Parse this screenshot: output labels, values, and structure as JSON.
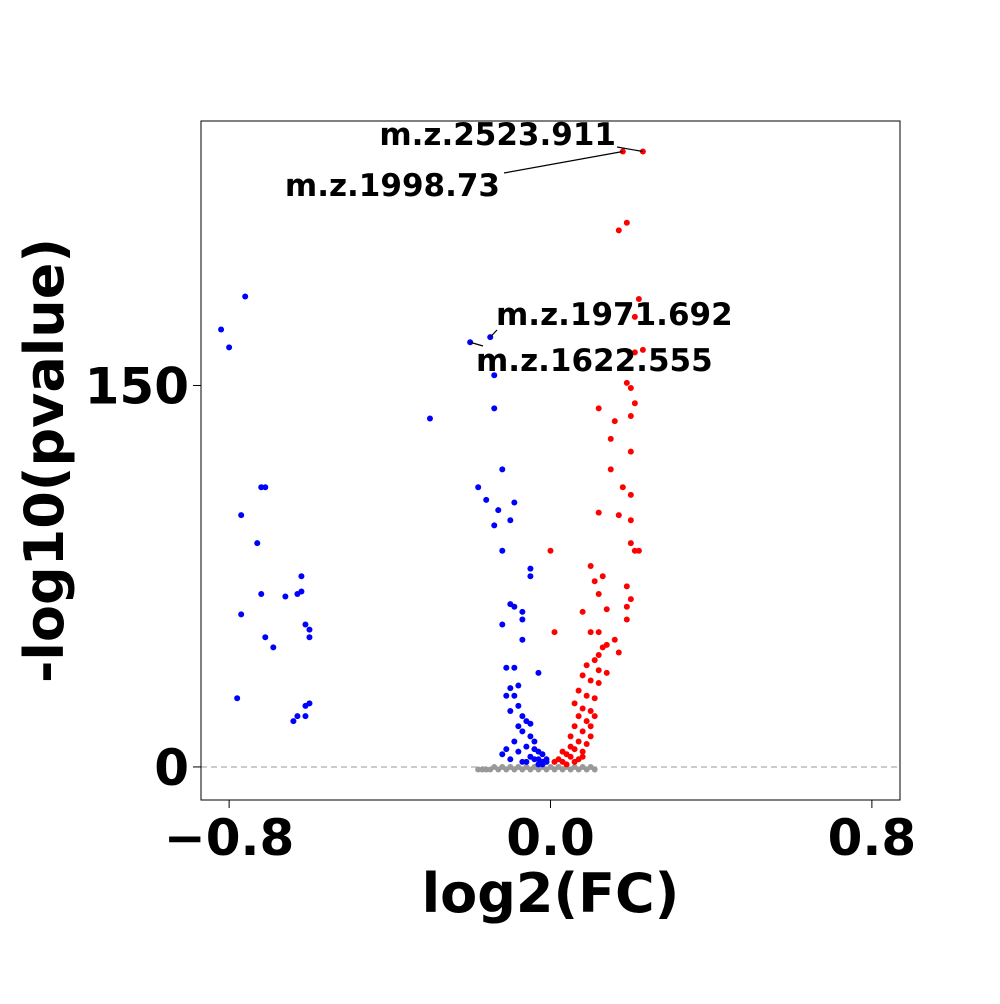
{
  "chart_data": {
    "type": "scatter",
    "title": "",
    "xlabel": "log2(FC)",
    "ylabel": "-log10(pvalue)",
    "xlim": [
      -0.87,
      0.87
    ],
    "ylim": [
      -13,
      254
    ],
    "x_ticks": [
      -0.8,
      0.0,
      0.8
    ],
    "x_tick_labels": [
      "−0.8",
      "0.0",
      "0.8"
    ],
    "y_ticks": [
      0,
      150
    ],
    "y_tick_labels": [
      "0",
      "150"
    ],
    "grid": false,
    "legend": "none",
    "threshold_line": {
      "y": 0,
      "color": "#bbbbbb",
      "style": "dashed"
    },
    "colors": {
      "up": "#ff0000",
      "down": "#0000ff",
      "nonsig": "#999999"
    },
    "series": [
      {
        "color_key": "down",
        "points": [
          [
            -0.8,
            165
          ],
          [
            -0.76,
            185
          ],
          [
            -0.82,
            172
          ],
          [
            -0.77,
            99
          ],
          [
            -0.77,
            60
          ],
          [
            -0.73,
            88
          ],
          [
            -0.72,
            110
          ],
          [
            -0.71,
            110
          ],
          [
            -0.72,
            68
          ],
          [
            -0.71,
            51
          ],
          [
            -0.69,
            47
          ],
          [
            -0.66,
            67
          ],
          [
            -0.63,
            68
          ],
          [
            -0.62,
            69
          ],
          [
            -0.62,
            75
          ],
          [
            -0.61,
            56
          ],
          [
            -0.6,
            51
          ],
          [
            -0.6,
            54
          ],
          [
            -0.64,
            18
          ],
          [
            -0.63,
            20
          ],
          [
            -0.61,
            20
          ],
          [
            -0.61,
            24
          ],
          [
            -0.6,
            25
          ],
          [
            -0.78,
            27
          ],
          [
            -0.3,
            137
          ],
          [
            -0.2,
            167
          ],
          [
            -0.15,
            169
          ],
          [
            -0.14,
            154
          ],
          [
            -0.14,
            141
          ],
          [
            -0.12,
            117
          ],
          [
            -0.18,
            110
          ],
          [
            -0.16,
            105
          ],
          [
            -0.13,
            101
          ],
          [
            -0.14,
            95
          ],
          [
            -0.1,
            97
          ],
          [
            -0.09,
            104
          ],
          [
            -0.12,
            85
          ],
          [
            -0.05,
            78
          ],
          [
            -0.05,
            75
          ],
          [
            -0.1,
            64
          ],
          [
            -0.09,
            63
          ],
          [
            -0.07,
            61
          ],
          [
            -0.07,
            58
          ],
          [
            -0.12,
            56
          ],
          [
            -0.07,
            50
          ],
          [
            -0.03,
            37
          ],
          [
            -0.11,
            39
          ],
          [
            -0.09,
            39
          ],
          [
            -0.1,
            31
          ],
          [
            -0.08,
            32
          ],
          [
            -0.11,
            28
          ],
          [
            -0.09,
            28
          ],
          [
            -0.08,
            24
          ],
          [
            -0.1,
            22
          ],
          [
            -0.07,
            20
          ],
          [
            -0.06,
            18
          ],
          [
            -0.05,
            17
          ],
          [
            -0.08,
            16
          ],
          [
            -0.07,
            14
          ],
          [
            -0.05,
            12
          ],
          [
            -0.04,
            10
          ],
          [
            -0.06,
            8
          ],
          [
            -0.04,
            7
          ],
          [
            -0.03,
            6
          ],
          [
            -0.05,
            4
          ],
          [
            -0.03,
            3
          ],
          [
            -0.02,
            2
          ],
          [
            -0.01,
            2
          ],
          [
            -0.02,
            1
          ],
          [
            -0.03,
            1
          ],
          [
            -0.01,
            3
          ],
          [
            -0.02,
            5
          ],
          [
            -0.04,
            3
          ],
          [
            -0.06,
            2
          ],
          [
            -0.08,
            6
          ],
          [
            -0.11,
            7
          ],
          [
            -0.09,
            10
          ],
          [
            -0.12,
            5
          ],
          [
            -0.07,
            2
          ],
          [
            -0.1,
            3
          ]
        ]
      },
      {
        "color_key": "up",
        "points": [
          [
            0.23,
            242
          ],
          [
            0.18,
            242
          ],
          [
            0.19,
            214
          ],
          [
            0.17,
            211
          ],
          [
            0.22,
            184
          ],
          [
            0.21,
            177
          ],
          [
            0.21,
            163
          ],
          [
            0.23,
            164
          ],
          [
            0.19,
            151
          ],
          [
            0.2,
            149
          ],
          [
            0.21,
            143
          ],
          [
            0.2,
            138
          ],
          [
            0.12,
            141
          ],
          [
            0.16,
            136
          ],
          [
            0.15,
            129
          ],
          [
            0.2,
            124
          ],
          [
            0.15,
            117
          ],
          [
            0.18,
            110
          ],
          [
            0.2,
            107
          ],
          [
            0.12,
            100
          ],
          [
            0.17,
            99
          ],
          [
            0.2,
            97
          ],
          [
            0.2,
            88
          ],
          [
            0.22,
            85
          ],
          [
            0.21,
            85
          ],
          [
            0.0,
            85
          ],
          [
            0.1,
            79
          ],
          [
            0.13,
            75
          ],
          [
            0.11,
            73
          ],
          [
            0.12,
            68
          ],
          [
            0.19,
            71
          ],
          [
            0.2,
            66
          ],
          [
            0.08,
            61
          ],
          [
            0.19,
            63
          ],
          [
            0.14,
            62
          ],
          [
            0.19,
            58
          ],
          [
            0.1,
            53
          ],
          [
            0.12,
            53
          ],
          [
            0.01,
            53
          ],
          [
            0.14,
            48
          ],
          [
            0.13,
            47
          ],
          [
            0.16,
            50
          ],
          [
            0.17,
            45
          ],
          [
            0.12,
            44
          ],
          [
            0.11,
            42
          ],
          [
            0.09,
            40
          ],
          [
            0.12,
            38
          ],
          [
            0.14,
            37
          ],
          [
            0.08,
            36
          ],
          [
            0.1,
            34
          ],
          [
            0.12,
            33
          ],
          [
            0.07,
            30
          ],
          [
            0.09,
            28
          ],
          [
            0.11,
            27
          ],
          [
            0.06,
            25
          ],
          [
            0.08,
            23
          ],
          [
            0.1,
            22
          ],
          [
            0.07,
            20
          ],
          [
            0.09,
            18
          ],
          [
            0.06,
            16
          ],
          [
            0.08,
            14
          ],
          [
            0.1,
            12
          ],
          [
            0.05,
            12
          ],
          [
            0.07,
            10
          ],
          [
            0.09,
            9
          ],
          [
            0.06,
            7
          ],
          [
            0.08,
            6
          ],
          [
            0.04,
            5
          ],
          [
            0.05,
            4
          ],
          [
            0.07,
            3
          ],
          [
            0.03,
            2
          ],
          [
            0.02,
            3
          ],
          [
            0.01,
            2
          ],
          [
            0.04,
            1
          ],
          [
            0.06,
            2
          ],
          [
            0.08,
            4
          ],
          [
            0.05,
            8
          ],
          [
            0.03,
            6
          ],
          [
            0.1,
            16
          ],
          [
            0.11,
            20
          ]
        ]
      },
      {
        "color_key": "nonsig",
        "points": [
          [
            -0.18,
            -1
          ],
          [
            -0.17,
            -1
          ],
          [
            -0.16,
            -1
          ],
          [
            -0.15,
            -1
          ],
          [
            -0.14,
            0
          ],
          [
            -0.13,
            -1
          ],
          [
            -0.12,
            0
          ],
          [
            -0.11,
            -1
          ],
          [
            -0.1,
            0
          ],
          [
            -0.09,
            -1
          ],
          [
            -0.08,
            0
          ],
          [
            -0.07,
            -1
          ],
          [
            -0.06,
            0
          ],
          [
            -0.05,
            -1
          ],
          [
            -0.04,
            0
          ],
          [
            -0.03,
            -1
          ],
          [
            -0.02,
            0
          ],
          [
            -0.01,
            -1
          ],
          [
            0.0,
            0
          ],
          [
            0.01,
            -1
          ],
          [
            0.02,
            0
          ],
          [
            0.03,
            -1
          ],
          [
            0.04,
            0
          ],
          [
            0.05,
            -1
          ],
          [
            0.06,
            0
          ],
          [
            0.07,
            -1
          ],
          [
            0.08,
            0
          ],
          [
            0.09,
            -1
          ],
          [
            0.1,
            0
          ],
          [
            0.11,
            -1
          ]
        ]
      }
    ],
    "annotations": [
      {
        "text": "m.z.2523.911",
        "x": 0.23,
        "y": 242
      },
      {
        "text": "m.z.1998.73",
        "x": 0.18,
        "y": 242
      },
      {
        "text": "m.z.1971.692",
        "x": -0.15,
        "y": 169
      },
      {
        "text": "m.z.1622.555",
        "x": -0.2,
        "y": 167
      }
    ]
  }
}
